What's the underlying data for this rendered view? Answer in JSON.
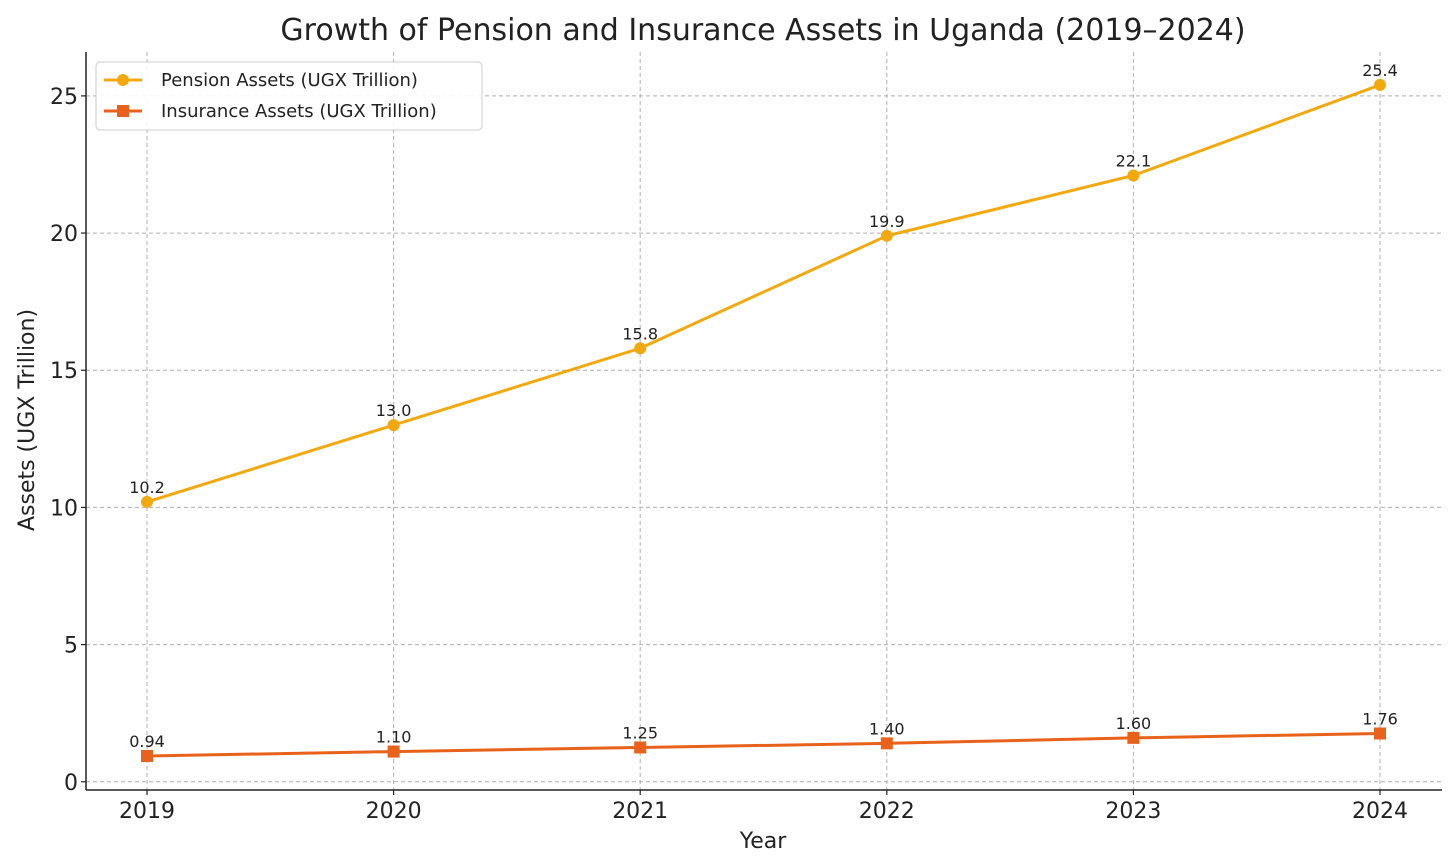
{
  "chart_data": {
    "type": "line",
    "title": "Growth of Pension and Insurance Assets in Uganda (2019–2024)",
    "xlabel": "Year",
    "ylabel": "Assets (UGX Trillion)",
    "categories": [
      "2019",
      "2020",
      "2021",
      "2022",
      "2023",
      "2024"
    ],
    "ylim": [
      -0.3,
      26.6
    ],
    "yticks": [
      0,
      5,
      10,
      15,
      20,
      25
    ],
    "grid": true,
    "legend_position": "top-left",
    "series": [
      {
        "name": "Pension Assets (UGX Trillion)",
        "color": "#F2A90F",
        "marker": "circle",
        "values": [
          10.2,
          13.0,
          15.8,
          19.9,
          22.1,
          25.4
        ],
        "labels": [
          "10.2",
          "13.0",
          "15.8",
          "19.9",
          "22.1",
          "25.4"
        ]
      },
      {
        "name": "Insurance Assets (UGX Trillion)",
        "color": "#E8621C",
        "marker": "square",
        "values": [
          0.94,
          1.1,
          1.25,
          1.4,
          1.6,
          1.76
        ],
        "labels": [
          "0.94",
          "1.10",
          "1.25",
          "1.40",
          "1.60",
          "1.76"
        ]
      }
    ]
  }
}
